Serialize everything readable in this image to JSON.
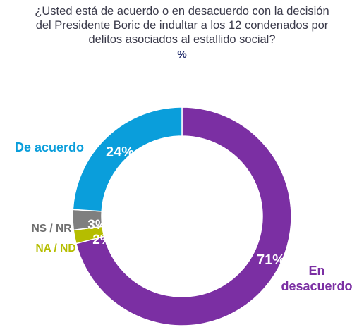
{
  "chart_data": {
    "type": "pie",
    "title_lines": [
      "¿Usted está de acuerdo o en desacuerdo con la decisión",
      "del Presidente Boric de indultar a los 12 condenados por",
      "delitos asociados al estallido social?"
    ],
    "unit": "%",
    "slices": [
      {
        "name": "En desacuerdo",
        "label_lines": [
          "En",
          "desacuerdo"
        ],
        "value": 71,
        "value_label": "71%",
        "color": "#7b2fa3"
      },
      {
        "name": "NA / ND",
        "label_lines": [
          "NA / ND"
        ],
        "value": 2,
        "value_label": "2%",
        "color": "#b5bd00"
      },
      {
        "name": "NS / NR",
        "label_lines": [
          "NS / NR"
        ],
        "value": 3,
        "value_label": "3%",
        "color": "#7f7f7f"
      },
      {
        "name": "De acuerdo",
        "label_lines": [
          "De acuerdo"
        ],
        "value": 24,
        "value_label": "24%",
        "color": "#0a9edb"
      }
    ]
  }
}
